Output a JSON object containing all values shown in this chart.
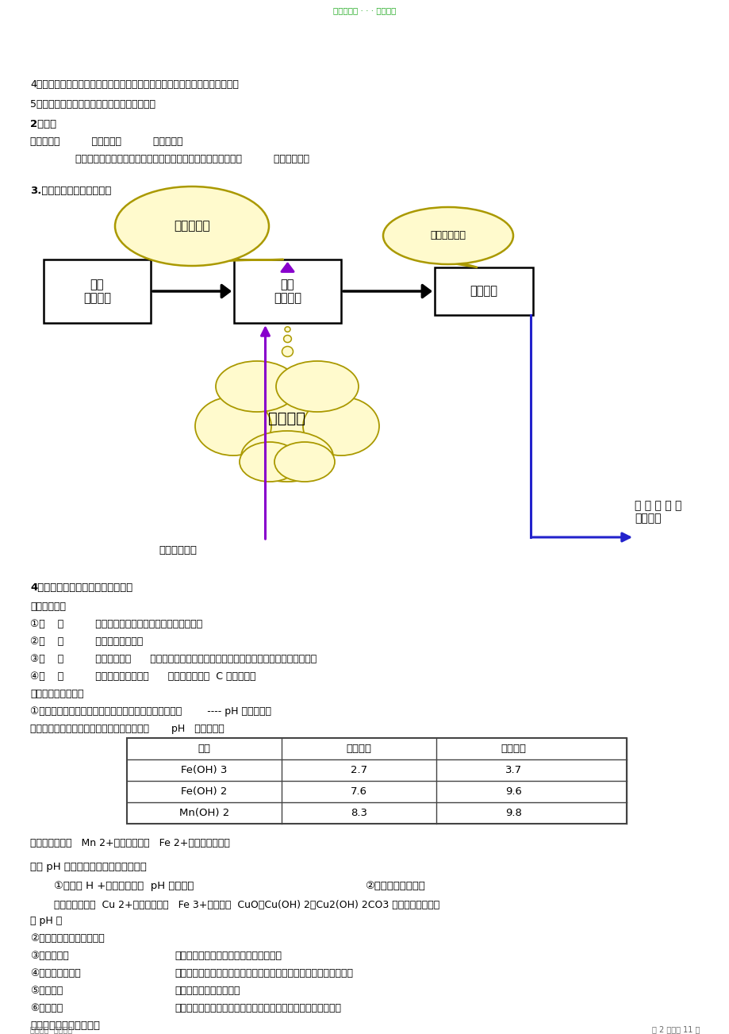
{
  "header": "精品学习料 · · · 欢迎下载",
  "bg": "#ffffff",
  "footer_l": "欢迎下载  关利打拼",
  "footer_r": "第 2 页，共 11 页",
  "line1": "4）、绿色化学（物质的循环利用、废物处理、原子利用率、能量的充分利用）",
  "line2": "5）、化工安全（防爆、防污染、防中毒）等。",
  "line3": "2．规律",
  "line4": "主线主产品          分支副产品          回头为循环",
  "line5": "核心考点：物质的分离操作、除杂试剂的选择、生产条件的控制          产品分离提纯",
  "sec3": "3.工业生产流程主线与核心",
  "box1": "原料\n无机矿物",
  "box2": "核心\n化学反应",
  "box3": "所需产品",
  "bub1": "原料预处理",
  "bub2": "产品分离提纯",
  "cloud": "反应条件",
  "recycle": "原料循环利用",
  "waste": "排 放 物 的 无\n害化处理",
  "sec4": "4．熟悉工业流程常见的操作与名词",
  "raw_pre": "原料的预处理",
  "op1": "①溶    解          通常用酸溶。如用硫酸、盐酸、浓硫酸等",
  "op2": "②灼    烧          如从海带中提取碘",
  "op3": "③煅    烧          如煅烧高岭土      改变结构，使一些物质能溶解。并使一些杂质高温下氧化、分解",
  "op4": "④研    磨          适用于有机物的提取      如苹果中维生素  C 的测定等。",
  "ctrl": "控制反应条件的方法",
  "ctrl1": "①控制溶液的酸碱性使其某些金属离子形成氢氧化物沉淀        ---- pH 值的控制。",
  "eg1": "例如：已知下列物质开始沉淀和沉淀完全时的       pH   如下表所示",
  "th": [
    "物质",
    "开始沉淀",
    "沉淀完全"
  ],
  "tr": [
    [
      "Fe(OH) 3",
      "2.7",
      "3.7"
    ],
    [
      "Fe(OH) 2",
      "7.6",
      "9.6"
    ],
    [
      "Mn(OH) 2",
      "8.3",
      "9.8"
    ]
  ],
  "q1": "问题：若要除去   Mn 2+溶液中含有的   Fe 2+，应该怎样做？",
  "adj": "调节 pH 所需的物质一般应满足两点：",
  "ph1": "①、能与 H +反应，使溶液  pH 值增大；",
  "ph2": "②、不引入新杂质。",
  "eg2a": "例如：若要除去  Cu 2+溶液中混有的   Fe 3+，可加入  CuO、Cu(OH) 2、Cu2(OH) 2CO3 等物质来调节溶液",
  "eg2b": "的 pH 值",
  "evap": [
    "②蒸发、反应时的气体氛围",
    "③加热的目的",
    "④降温反应的目的",
    "⑤趁热过滤",
    "⑥冰水洗涤"
  ],
  "evap_desc": [
    "",
    "加快反应速率或促进平衡向某个方向移动",
    "防止某物质在高温时会溶解或为使化学平衡向着题目要求的方向移动",
    "防止某物质降温时会析出",
    "洗去晶体表面的杂质离子，并减少晶体在洗涤过程中的溶解损耗"
  ],
  "sep": "物质的分离和提纯的方法"
}
